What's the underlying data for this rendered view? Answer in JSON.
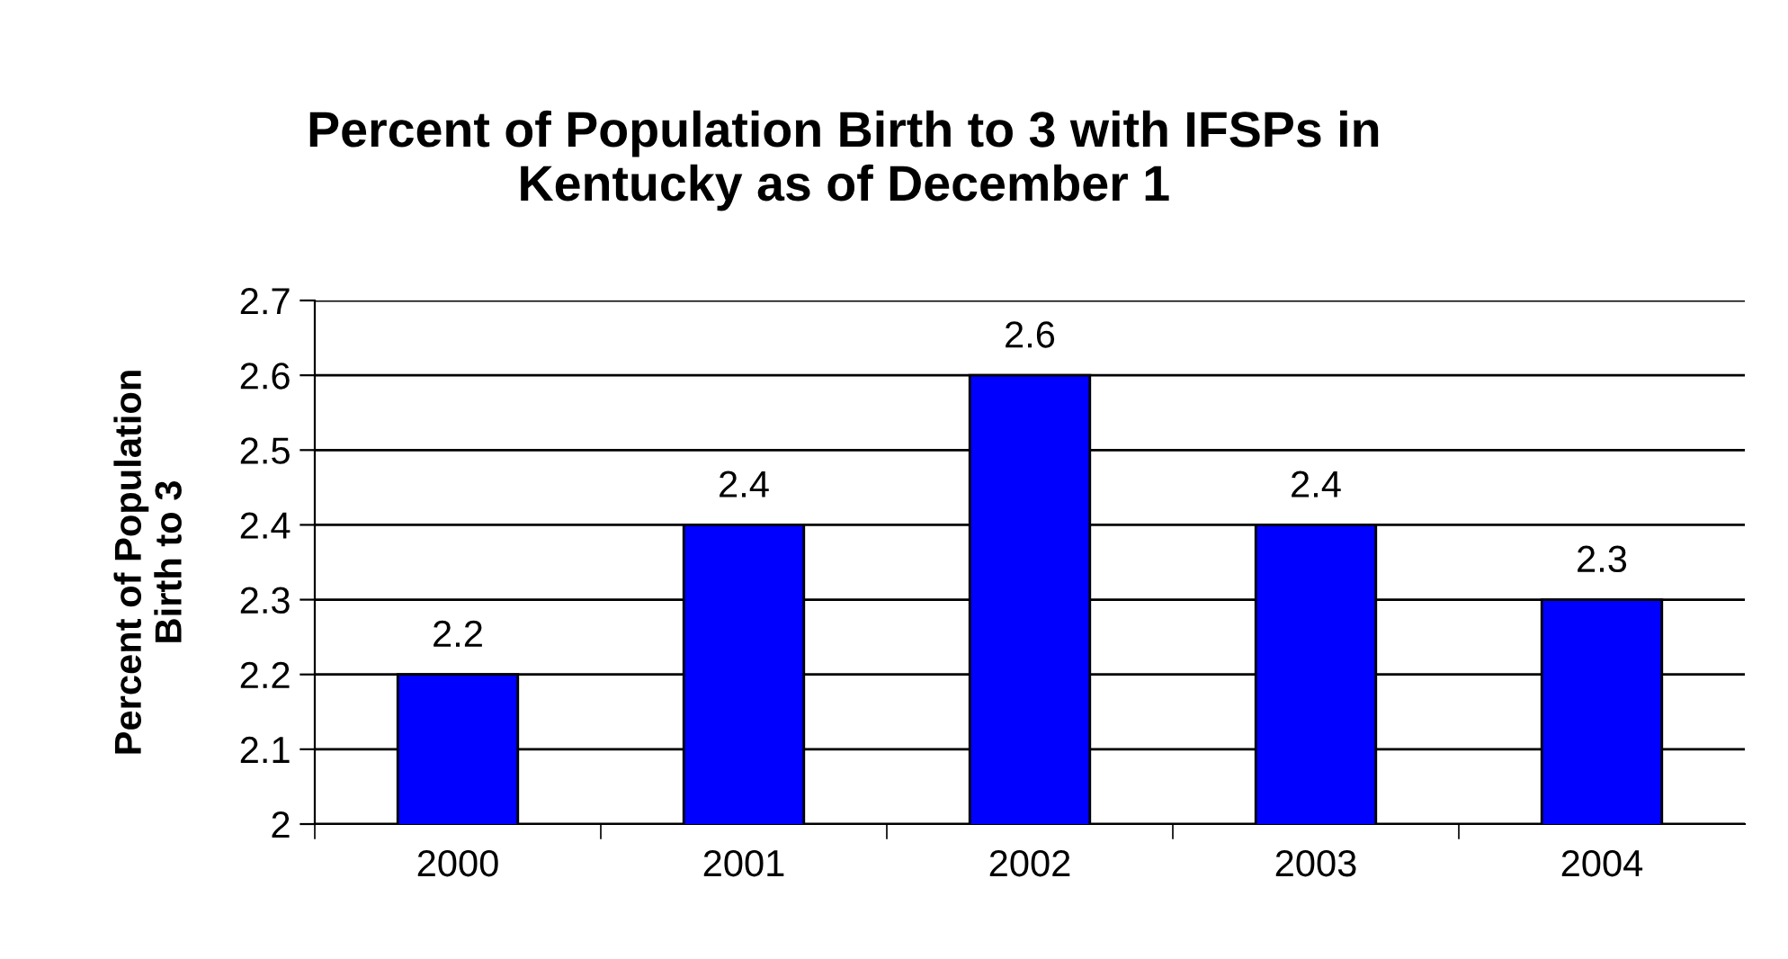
{
  "chart_data": {
    "type": "bar",
    "title": "Percent of Population Birth to 3 with IFSPs in\nKentucky as of December 1",
    "ylabel": "Percent of Population\nBirth to 3",
    "categories": [
      "2000",
      "2001",
      "2002",
      "2003",
      "2004"
    ],
    "values": [
      2.2,
      2.4,
      2.6,
      2.4,
      2.3
    ],
    "color": "#0000ff",
    "ylim": [
      2,
      2.7
    ],
    "yticks": [
      {
        "value": 2,
        "label": "2"
      },
      2.1,
      2.2,
      2.3,
      2.4,
      2.5,
      2.6,
      2.7
    ],
    "grid": "y",
    "data_labels": true,
    "legend": false
  }
}
